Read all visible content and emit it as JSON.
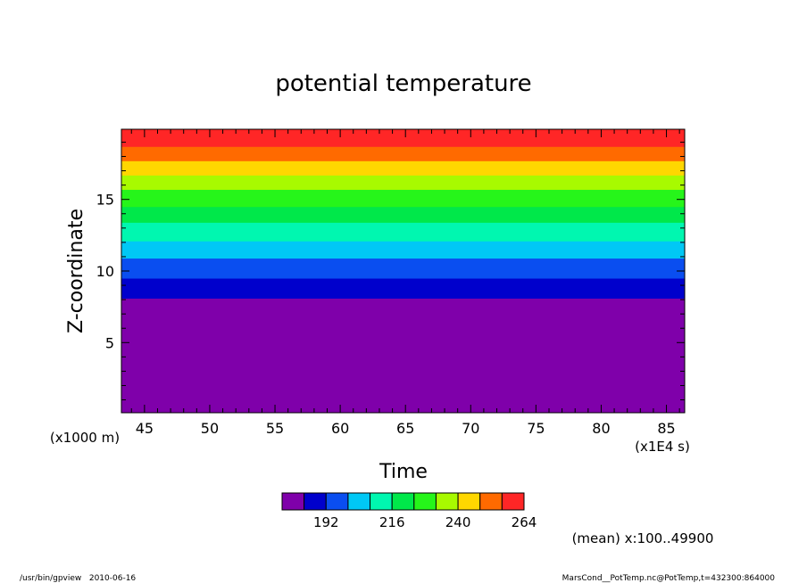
{
  "chart_data": {
    "type": "heatmap",
    "title": "potential temperature",
    "xlabel": "Time",
    "ylabel": "Z-coordinate",
    "x_units": "(x1E4 s)",
    "y_units": "(x1000 m)",
    "xlim": [
      43.23,
      86.4
    ],
    "ylim": [
      0.1,
      19.9
    ],
    "x_ticks": [
      45,
      50,
      55,
      60,
      65,
      70,
      75,
      80,
      85
    ],
    "y_ticks": [
      5,
      10,
      15
    ],
    "bands": [
      {
        "z_from": 0.1,
        "z_to": 8.1,
        "color": "#7f00aa"
      },
      {
        "z_from": 8.1,
        "z_to": 9.5,
        "color": "#0000cc"
      },
      {
        "z_from": 9.5,
        "z_to": 10.9,
        "color": "#0a4ef0"
      },
      {
        "z_from": 10.9,
        "z_to": 12.1,
        "color": "#00c8f5"
      },
      {
        "z_from": 12.1,
        "z_to": 13.4,
        "color": "#00f7b0"
      },
      {
        "z_from": 13.4,
        "z_to": 14.5,
        "color": "#00e84a"
      },
      {
        "z_from": 14.5,
        "z_to": 15.7,
        "color": "#26f51a"
      },
      {
        "z_from": 15.7,
        "z_to": 16.7,
        "color": "#a8fa00"
      },
      {
        "z_from": 16.7,
        "z_to": 17.7,
        "color": "#ffd700"
      },
      {
        "z_from": 17.7,
        "z_to": 18.7,
        "color": "#ff6a00"
      },
      {
        "z_from": 18.7,
        "z_to": 19.9,
        "color": "#ff2626"
      }
    ],
    "colorbar": {
      "colors": [
        "#7f00aa",
        "#0000cc",
        "#0a4ef0",
        "#00c8f5",
        "#00f7b0",
        "#00e84a",
        "#26f51a",
        "#a8fa00",
        "#ffd700",
        "#ff6a00",
        "#ff2626"
      ],
      "labels": [
        {
          "value": "192",
          "after_box": 2
        },
        {
          "value": "216",
          "after_box": 5
        },
        {
          "value": "240",
          "after_box": 8
        },
        {
          "value": "264",
          "after_box": 11
        }
      ]
    },
    "annotation": "(mean) x:100..49900"
  },
  "footer": {
    "left": "/usr/bin/gpview   2010-06-16",
    "right": "MarsCond__PotTemp.nc@PotTemp,t=432300:864000"
  }
}
